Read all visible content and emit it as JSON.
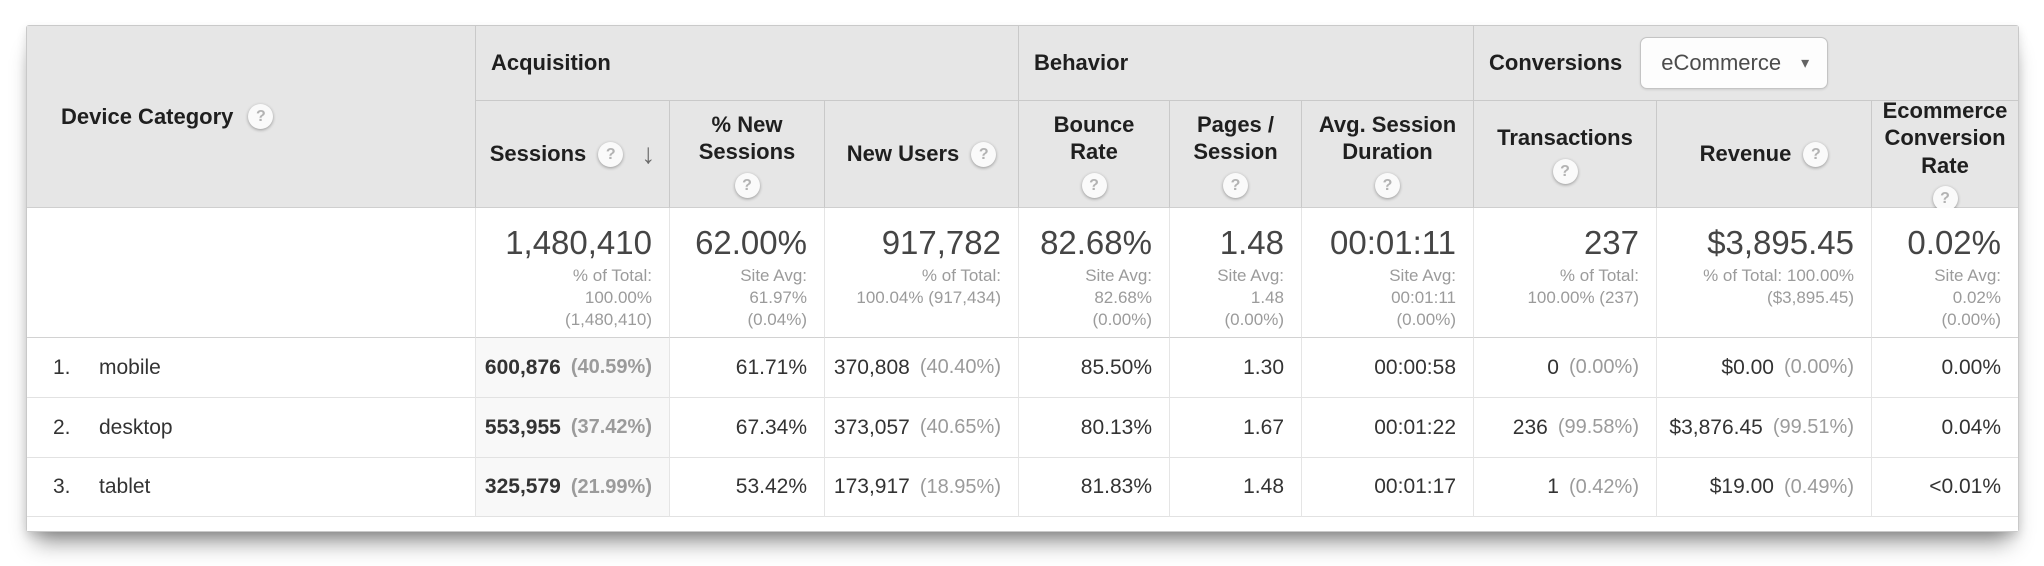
{
  "colors": {
    "header_bg": "#e6e6e6",
    "sorted_column_bg": "#f8f8f8",
    "body_text": "#333333",
    "muted_text": "#9b9b9b"
  },
  "table": {
    "icons": {
      "help": "?",
      "sort_desc": "↓",
      "caret": "▾"
    },
    "dimension": {
      "label": "Device Category"
    },
    "groups": [
      {
        "label": "Acquisition"
      },
      {
        "label": "Behavior"
      },
      {
        "label": "Conversions",
        "selector_value": "eCommerce"
      }
    ],
    "columns": [
      {
        "label": "Sessions"
      },
      {
        "label": "% New Sessions"
      },
      {
        "label": "New Users"
      },
      {
        "label": "Bounce Rate"
      },
      {
        "label": "Pages / Session"
      },
      {
        "label": "Avg. Session Duration"
      },
      {
        "label": "Transactions"
      },
      {
        "label": "Revenue"
      },
      {
        "label": "Ecommerce Conversion Rate"
      }
    ],
    "totals": {
      "sessions": {
        "value": "1,480,410",
        "sub": "% of Total:\n100.00%\n(1,480,410)"
      },
      "pct_new_sessions": {
        "value": "62.00%",
        "sub": "Site Avg:\n61.97%\n(0.04%)"
      },
      "new_users": {
        "value": "917,782",
        "sub": "% of Total:\n100.04% (917,434)"
      },
      "bounce_rate": {
        "value": "82.68%",
        "sub": "Site Avg:\n82.68%\n(0.00%)"
      },
      "pages_per_session": {
        "value": "1.48",
        "sub": "Site Avg:\n1.48\n(0.00%)"
      },
      "avg_session_duration": {
        "value": "00:01:11",
        "sub": "Site Avg:\n00:01:11\n(0.00%)"
      },
      "transactions": {
        "value": "237",
        "sub": "% of Total:\n100.00% (237)"
      },
      "revenue": {
        "value": "$3,895.45",
        "sub": "% of Total: 100.00%\n($3,895.45)"
      },
      "ecommerce_conversion_rate": {
        "value": "0.02%",
        "sub": "Site Avg:\n0.02%\n(0.00%)"
      }
    },
    "rows": [
      {
        "rank": "1.",
        "label": "mobile",
        "sessions": {
          "value": "600,876",
          "pct": "(40.59%)"
        },
        "pct_new_sessions": "61.71%",
        "new_users": {
          "value": "370,808",
          "pct": "(40.40%)"
        },
        "bounce_rate": "85.50%",
        "pages_per_session": "1.30",
        "avg_session_duration": "00:00:58",
        "transactions": {
          "value": "0",
          "pct": "(0.00%)"
        },
        "revenue": {
          "value": "$0.00",
          "pct": "(0.00%)"
        },
        "ecommerce_conversion_rate": "0.00%"
      },
      {
        "rank": "2.",
        "label": "desktop",
        "sessions": {
          "value": "553,955",
          "pct": "(37.42%)"
        },
        "pct_new_sessions": "67.34%",
        "new_users": {
          "value": "373,057",
          "pct": "(40.65%)"
        },
        "bounce_rate": "80.13%",
        "pages_per_session": "1.67",
        "avg_session_duration": "00:01:22",
        "transactions": {
          "value": "236",
          "pct": "(99.58%)"
        },
        "revenue": {
          "value": "$3,876.45",
          "pct": "(99.51%)"
        },
        "ecommerce_conversion_rate": "0.04%"
      },
      {
        "rank": "3.",
        "label": "tablet",
        "sessions": {
          "value": "325,579",
          "pct": "(21.99%)"
        },
        "pct_new_sessions": "53.42%",
        "new_users": {
          "value": "173,917",
          "pct": "(18.95%)"
        },
        "bounce_rate": "81.83%",
        "pages_per_session": "1.48",
        "avg_session_duration": "00:01:17",
        "transactions": {
          "value": "1",
          "pct": "(0.42%)"
        },
        "revenue": {
          "value": "$19.00",
          "pct": "(0.49%)"
        },
        "ecommerce_conversion_rate": "<0.01%"
      }
    ]
  }
}
